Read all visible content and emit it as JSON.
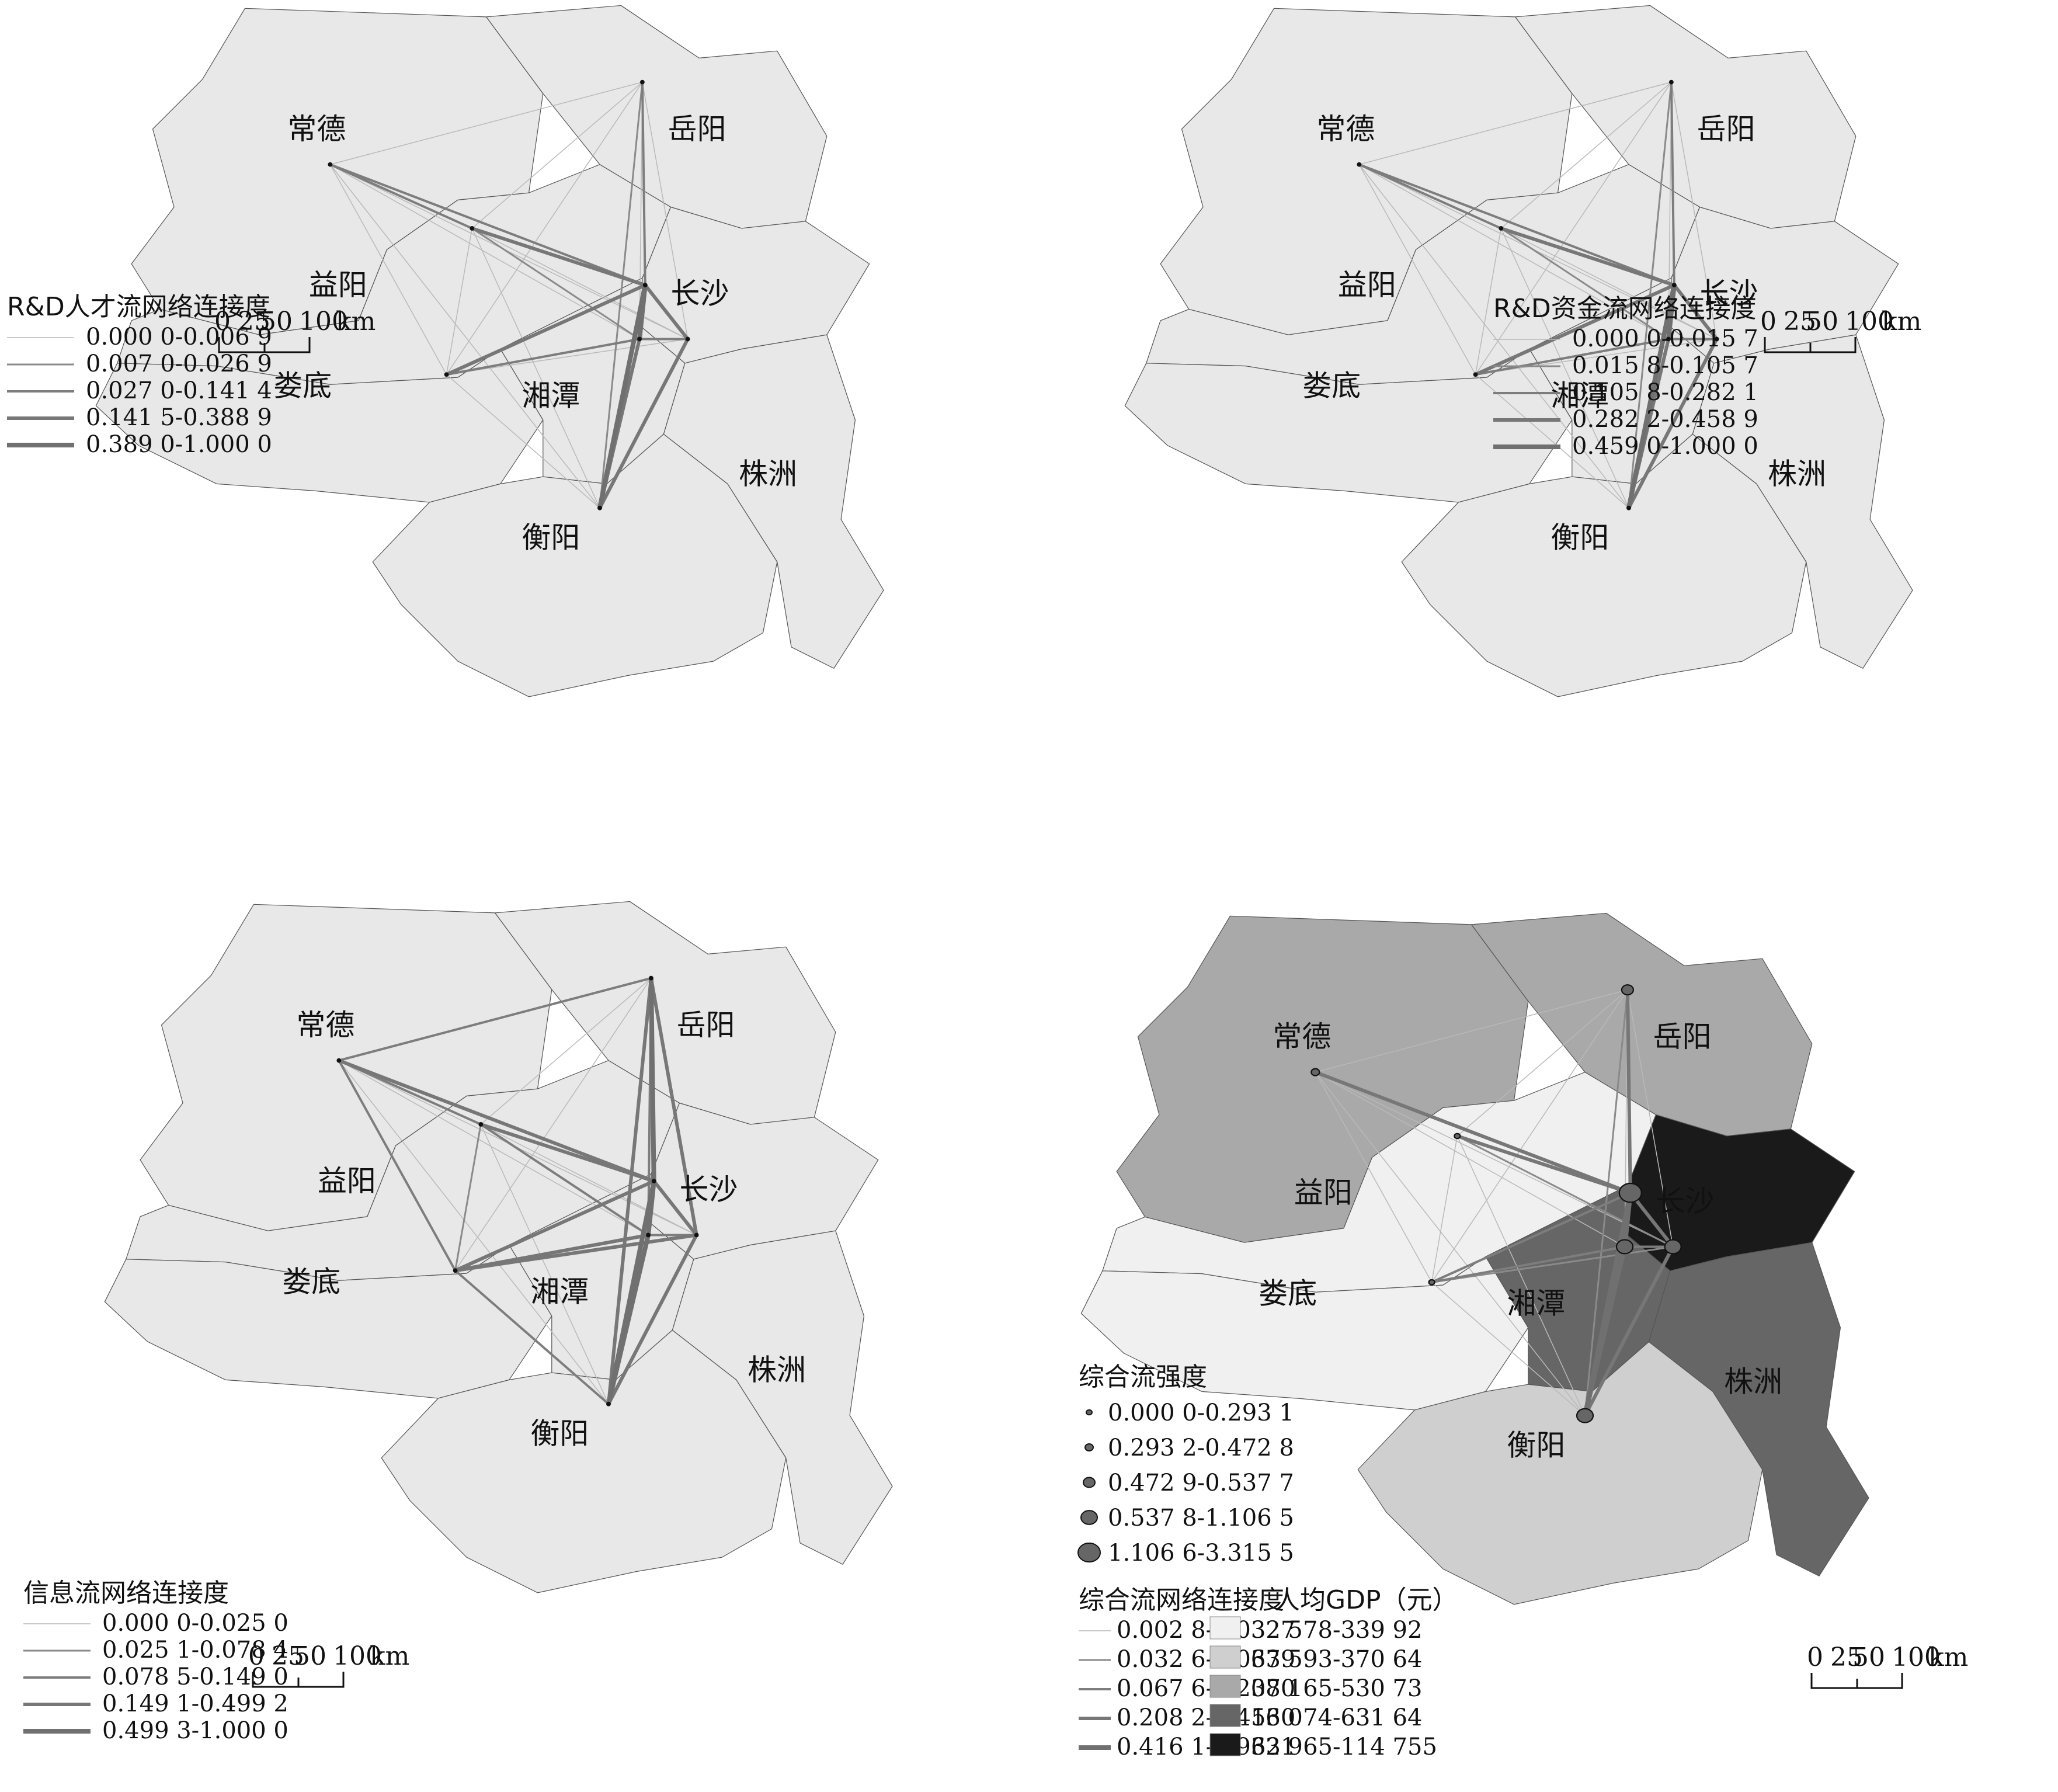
{
  "cities": {
    "changde": "常德",
    "yueyang": "岳阳",
    "yiyang": "益阳",
    "changsha": "长沙",
    "loudi": "娄底",
    "xiangtan": "湘潭",
    "zhuzhou": "株洲",
    "hengyang": "衡阳"
  },
  "scale": {
    "ticks": [
      "0",
      "25",
      "50",
      "100"
    ],
    "unit": "km"
  },
  "panels": [
    {
      "legend_title": "R&D人才流网络连接度",
      "classes": [
        "0.000 0-0.006 9",
        "0.007 0-0.026 9",
        "0.027 0-0.141 4",
        "0.141 5-0.388 9",
        "0.389 0-1.000 0"
      ]
    },
    {
      "legend_title": "R&D资金流网络连接度",
      "classes": [
        "0.000 0-0.015 7",
        "0.015 8-0.105 7",
        "0.105 8-0.282 1",
        "0.282 2-0.458 9",
        "0.459 0-1.000 0"
      ]
    },
    {
      "legend_title": "信息流网络连接度",
      "classes": [
        "0.000 0-0.025 0",
        "0.025 1-0.078 4",
        "0.078 5-0.149 0",
        "0.149 1-0.499 2",
        "0.499 3-1.000 0"
      ]
    },
    {
      "strength_title": "综合流强度",
      "strength_classes": [
        "0.000 0-0.293 1",
        "0.293 2-0.472 8",
        "0.472 9-0.537 7",
        "0.537 8-1.106 5",
        "1.106 6-3.315 5"
      ],
      "legend_title": "综合流网络连接度",
      "classes": [
        "0.002 8-0.032 5",
        "0.032 6-0.067 5",
        "0.067 6-0.208 1",
        "0.208 2-0.416 0",
        "0.416 1-0.932 9"
      ],
      "gdp_title": "人均GDP（元）",
      "gdp_classes": [
        "327 78-339 92",
        "339 93-370 64",
        "370 65-530 73",
        "530 74-631 64",
        "631 65-114 755"
      ],
      "gdp_colors": [
        "#f0f0f0",
        "#cfcfcf",
        "#a9a9a9",
        "#666666",
        "#1a1a1a"
      ],
      "region_gdp_class": {
        "changde": 2,
        "yueyang": 2,
        "yiyang": 0,
        "changsha": 4,
        "loudi": 0,
        "xiangtan": 3,
        "zhuzhou": 3,
        "hengyang": 1
      }
    }
  ]
}
